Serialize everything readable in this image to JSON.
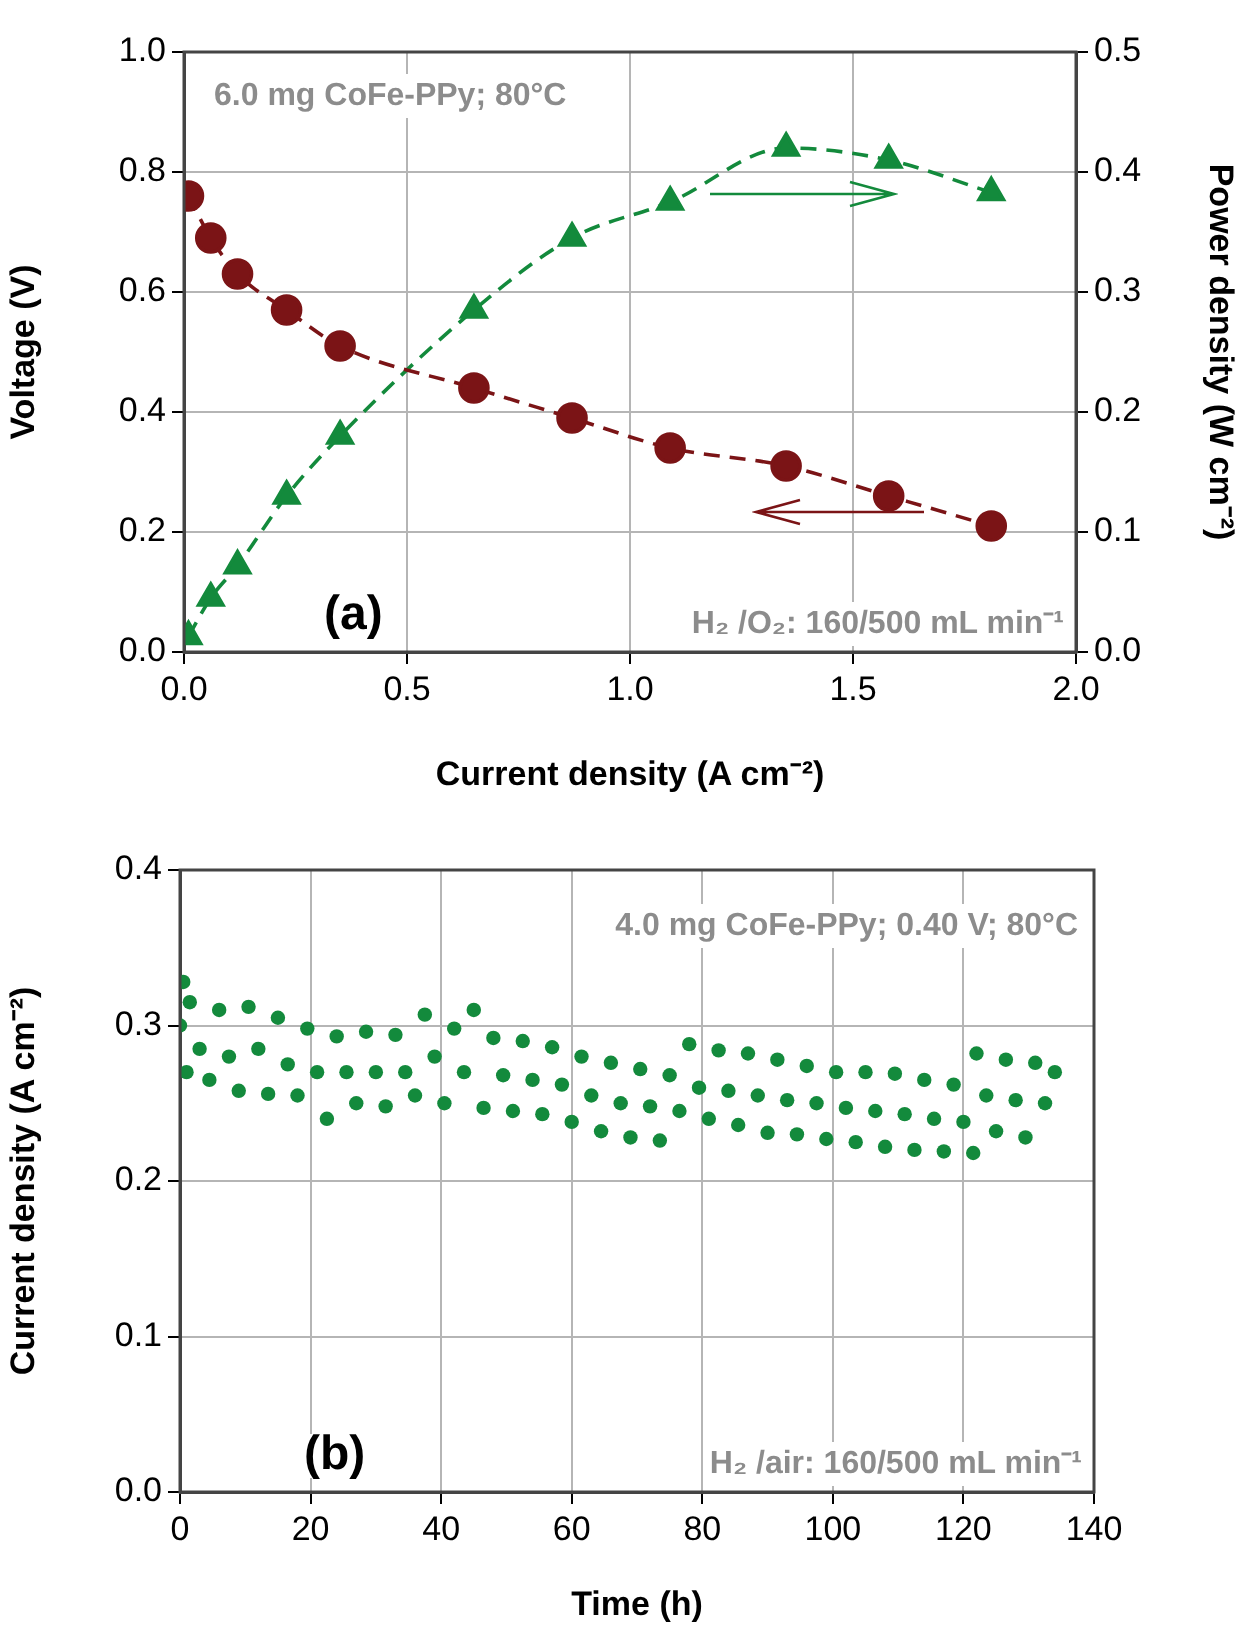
{
  "chart_data": [
    {
      "type": "line",
      "xlabel": "Current density (A cm⁻²)",
      "ylabel": "Voltage (V)",
      "y2label": "Power density (W cm⁻²)",
      "x": [
        0.01,
        0.06,
        0.12,
        0.23,
        0.35,
        0.65,
        0.87,
        1.09,
        1.35,
        1.58,
        1.81
      ],
      "series": [
        {
          "color": "#7b1416",
          "marker": "circle",
          "line_style": "dashed",
          "values": [
            0.76,
            0.69,
            0.63,
            0.57,
            0.51,
            0.44,
            0.39,
            0.34,
            0.31,
            0.26,
            0.21
          ]
        },
        {
          "color": "#138a3c",
          "marker": "triangle",
          "line_style": "dashed",
          "axis": "y2",
          "values": [
            0.013,
            0.045,
            0.072,
            0.13,
            0.18,
            0.285,
            0.345,
            0.375,
            0.42,
            0.41,
            0.383
          ]
        }
      ],
      "xlim": [
        0,
        2
      ],
      "xticks": [
        {
          "value": 0,
          "label": "0.0"
        },
        {
          "value": 0.5,
          "label": "0.5"
        },
        {
          "value": 1,
          "label": "1.0"
        },
        {
          "value": 1.5,
          "label": "1.5"
        },
        {
          "value": 2,
          "label": "2.0"
        }
      ],
      "ylim": [
        0,
        1
      ],
      "yticks": [
        {
          "value": 0,
          "label": "0.0"
        },
        {
          "value": 0.2,
          "label": "0.2"
        },
        {
          "value": 0.4,
          "label": "0.4"
        },
        {
          "value": 0.6,
          "label": "0.6"
        },
        {
          "value": 0.8,
          "label": "0.8"
        },
        {
          "value": 1,
          "label": "1.0"
        }
      ],
      "y2lim": [
        0,
        0.5
      ],
      "y2ticks": [
        {
          "value": 0,
          "label": "0.0"
        },
        {
          "value": 0.1,
          "label": "0.1"
        },
        {
          "value": 0.2,
          "label": "0.2"
        },
        {
          "value": 0.3,
          "label": "0.3"
        },
        {
          "value": 0.4,
          "label": "0.4"
        },
        {
          "value": 0.5,
          "label": "0.5"
        }
      ],
      "grid": true,
      "annotations": [
        "6.0 mg CoFe-PPy; 80°C",
        "(a)",
        "H₂ /O₂: 160/500 mL min⁻¹"
      ]
    },
    {
      "type": "scatter",
      "xlabel": "Time (h)",
      "ylabel": "Current density (A cm⁻²)",
      "color": "#138a3c",
      "marker": "circle",
      "x": [
        0.5,
        0,
        1,
        1.5,
        3,
        4.5,
        6,
        7.5,
        9,
        10.5,
        12,
        13.5,
        15,
        16.5,
        18,
        19.5,
        21,
        22.5,
        24,
        25.5,
        27,
        28.5,
        30,
        31.5,
        33,
        34.5,
        36,
        37.5,
        39,
        40.5,
        42,
        43.5,
        45,
        46.5,
        48,
        49.5,
        51,
        52.5,
        54,
        55.5,
        57,
        58.5,
        60,
        61.5,
        63,
        64.5,
        66,
        67.5,
        69,
        70.5,
        72,
        73.5,
        75,
        76.5,
        78,
        79.5,
        81,
        82.5,
        84,
        85.5,
        87,
        88.5,
        90,
        91.5,
        93,
        94.5,
        96,
        97.5,
        99,
        100.5,
        102,
        103.5,
        105,
        106.5,
        108,
        109.5,
        111,
        112.5,
        114,
        115.5,
        117,
        118.5,
        120,
        121.5,
        122,
        123.5,
        125,
        126.5,
        128,
        129.5,
        131,
        132.5,
        134
      ],
      "values": [
        0.328,
        0.3,
        0.27,
        0.315,
        0.285,
        0.265,
        0.31,
        0.28,
        0.258,
        0.312,
        0.285,
        0.256,
        0.305,
        0.275,
        0.255,
        0.298,
        0.27,
        0.24,
        0.293,
        0.27,
        0.25,
        0.296,
        0.27,
        0.248,
        0.294,
        0.27,
        0.255,
        0.307,
        0.28,
        0.25,
        0.298,
        0.27,
        0.31,
        0.247,
        0.292,
        0.268,
        0.245,
        0.29,
        0.265,
        0.243,
        0.286,
        0.262,
        0.238,
        0.28,
        0.255,
        0.232,
        0.276,
        0.25,
        0.228,
        0.272,
        0.248,
        0.226,
        0.268,
        0.245,
        0.288,
        0.26,
        0.24,
        0.284,
        0.258,
        0.236,
        0.282,
        0.255,
        0.231,
        0.278,
        0.252,
        0.23,
        0.274,
        0.25,
        0.227,
        0.27,
        0.247,
        0.225,
        0.27,
        0.245,
        0.222,
        0.269,
        0.243,
        0.22,
        0.265,
        0.24,
        0.219,
        0.262,
        0.238,
        0.218,
        0.282,
        0.255,
        0.232,
        0.278,
        0.252,
        0.228,
        0.276,
        0.25,
        0.27
      ],
      "xlim": [
        0,
        140
      ],
      "xticks": [
        0,
        20,
        40,
        60,
        80,
        100,
        120,
        140
      ],
      "ylim": [
        0,
        0.4
      ],
      "yticks": [
        {
          "value": 0,
          "label": "0.0"
        },
        {
          "value": 0.1,
          "label": "0.1"
        },
        {
          "value": 0.2,
          "label": "0.2"
        },
        {
          "value": 0.3,
          "label": "0.3"
        },
        {
          "value": 0.4,
          "label": "0.4"
        }
      ],
      "grid": true,
      "annotations": [
        "4.0 mg CoFe-PPy; 0.40 V; 80°C",
        "(b)",
        "H₂ /air: 160/500 mL min⁻¹"
      ]
    }
  ]
}
